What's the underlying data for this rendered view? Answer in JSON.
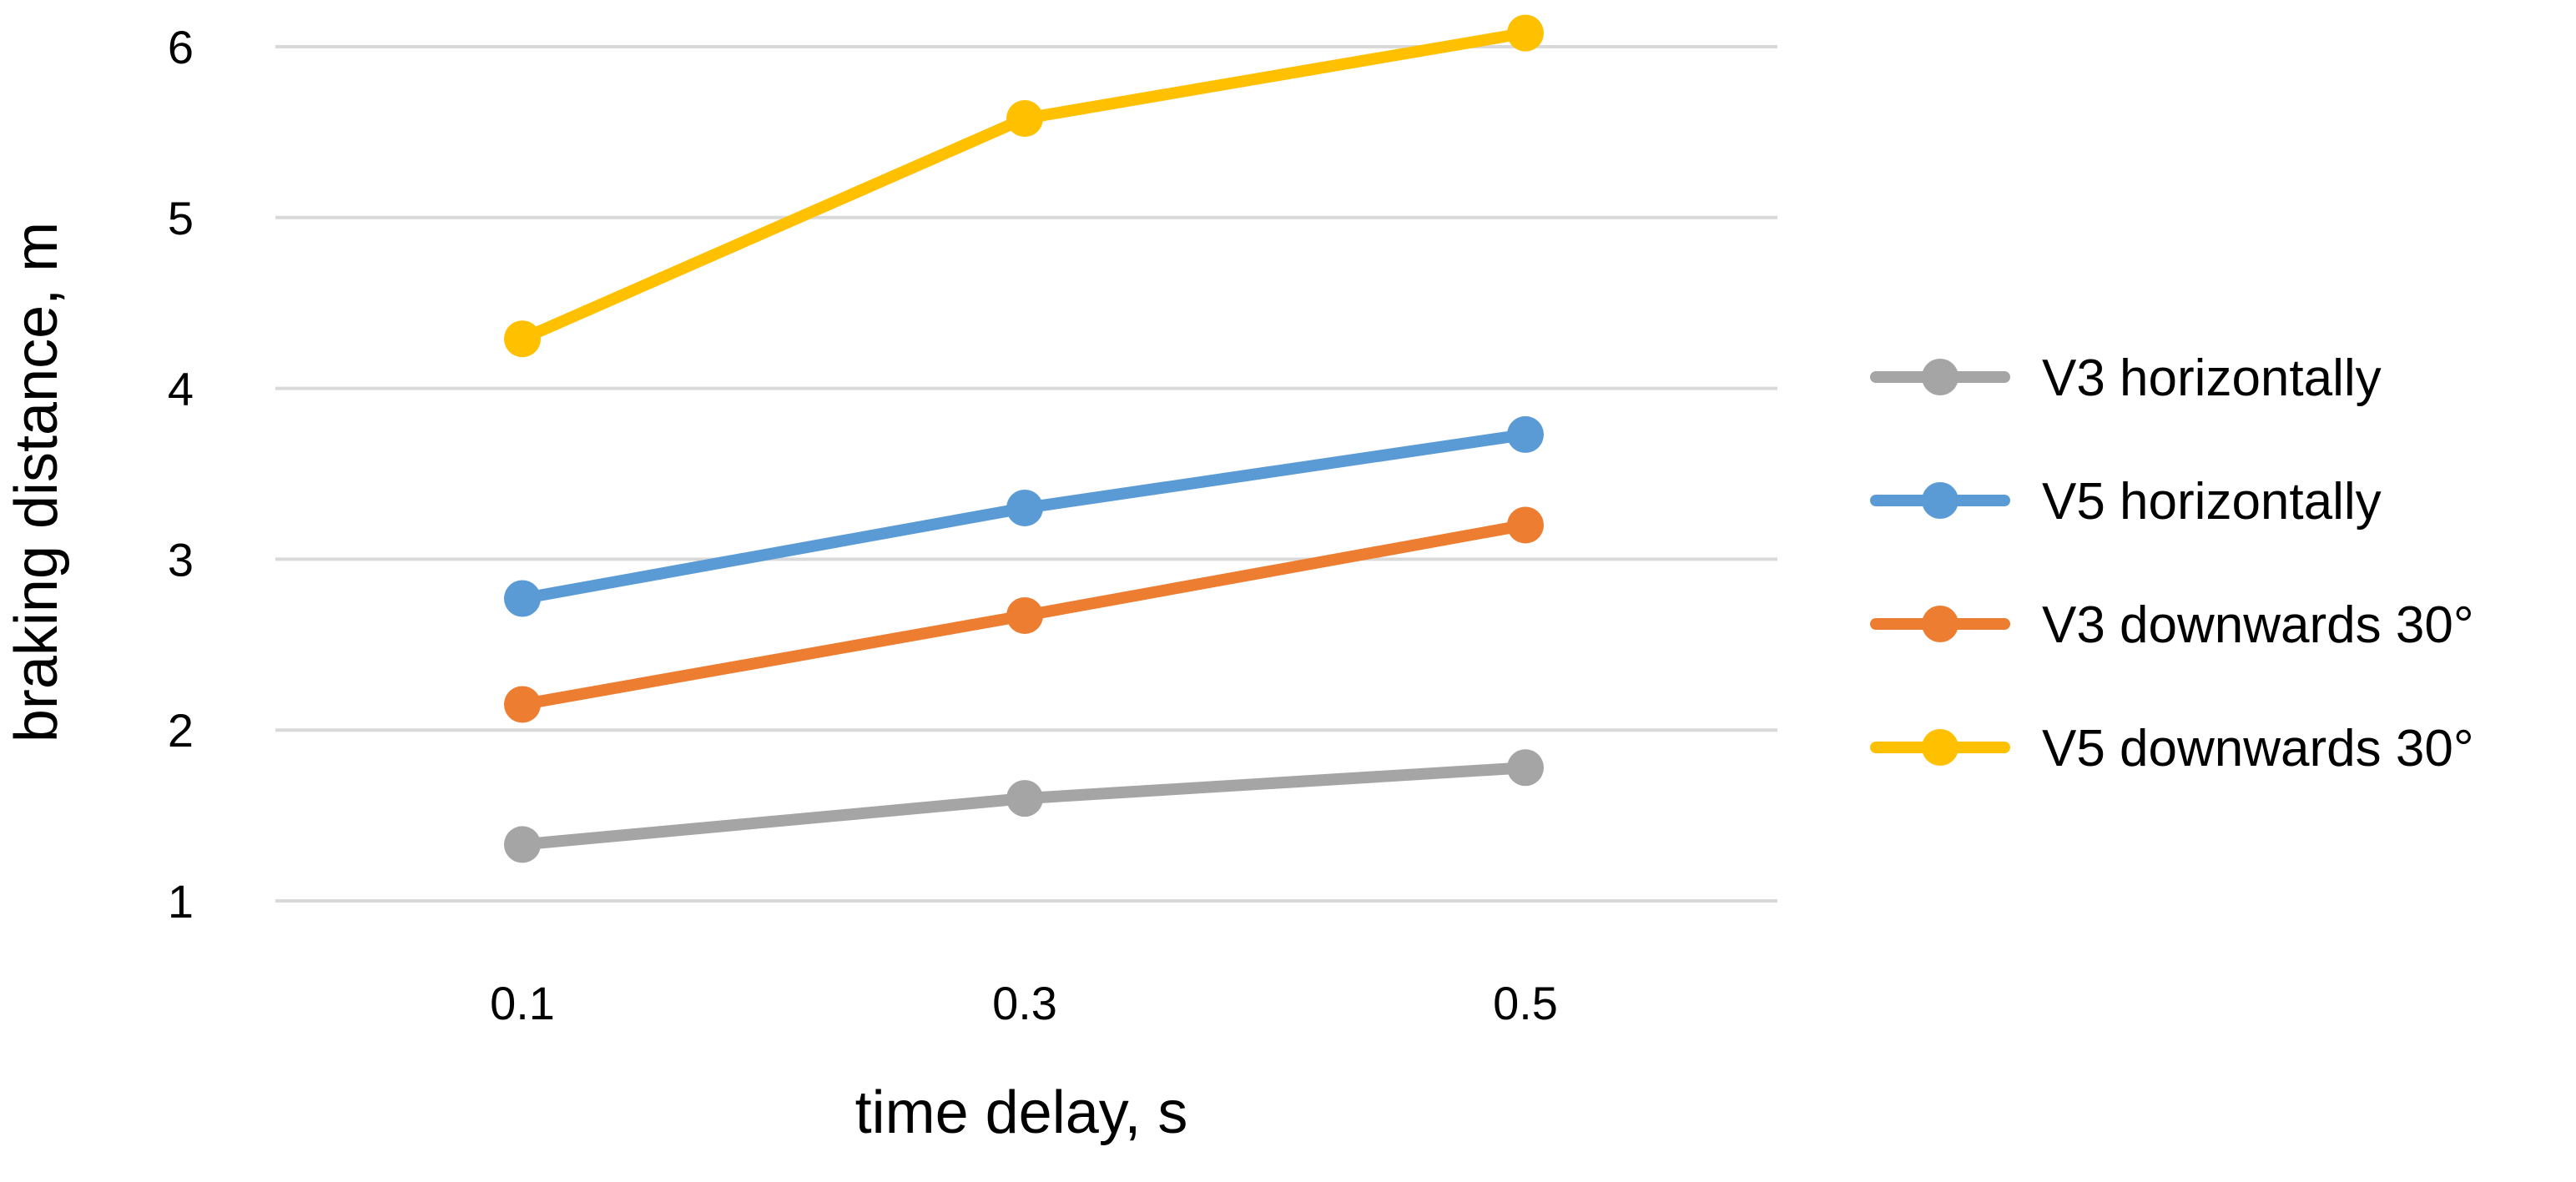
{
  "chart_data": {
    "type": "line",
    "xlabel": "time delay, s",
    "ylabel": "braking distance, m",
    "categories": [
      "0.1",
      "0.3",
      "0.5"
    ],
    "ylim": [
      1,
      6
    ],
    "yticks": [
      1,
      2,
      3,
      4,
      5,
      6
    ],
    "grid": true,
    "legend_position": "right",
    "series": [
      {
        "name": "V3 horizontally",
        "color": "#a5a5a5",
        "values": [
          1.33,
          1.6,
          1.78
        ]
      },
      {
        "name": "V5 horizontally",
        "color": "#5b9bd5",
        "values": [
          2.77,
          3.3,
          3.73
        ]
      },
      {
        "name": "V3 downwards 30°",
        "color": "#ed7d31",
        "values": [
          2.15,
          2.67,
          3.2
        ]
      },
      {
        "name": "V5 downwards 30°",
        "color": "#ffc000",
        "values": [
          4.29,
          5.58,
          6.08
        ]
      }
    ]
  }
}
